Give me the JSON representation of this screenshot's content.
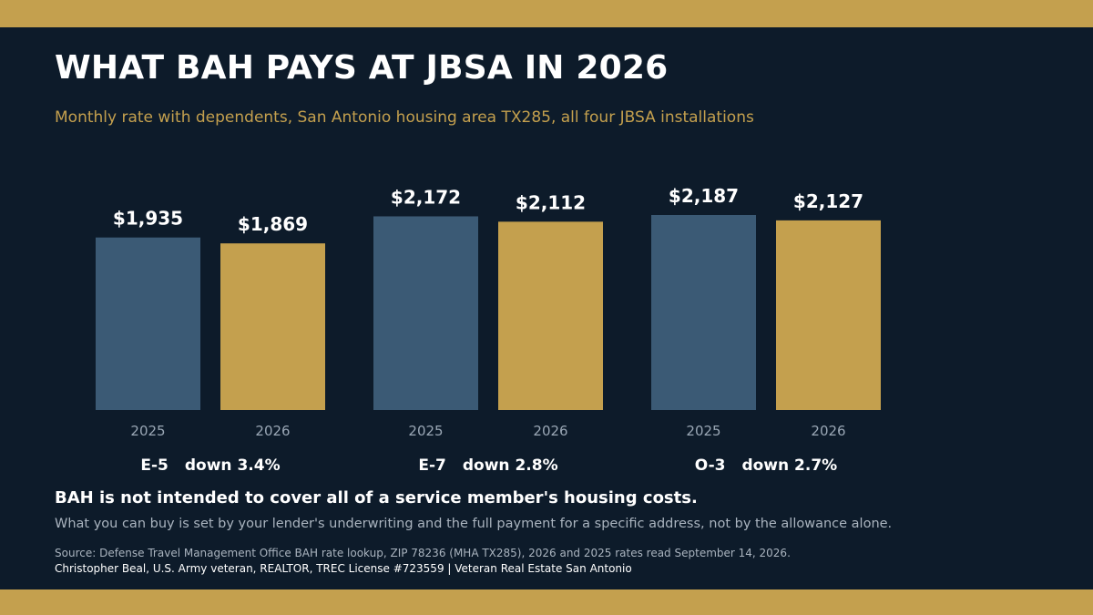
{
  "colors": {
    "background": "#0d1b2a",
    "gold": "#c4a04e",
    "slate": "#3b5a75"
  },
  "header": {
    "title": "WHAT BAH PAYS AT JBSA IN 2026",
    "subtitle": "Monthly rate with dependents, San Antonio housing area TX285, all four JBSA installations"
  },
  "chart_data": {
    "type": "bar",
    "title": "WHAT BAH PAYS AT JBSA IN 2026",
    "subtitle": "Monthly rate with dependents, San Antonio housing area TX285, all four JBSA installations",
    "grid": false,
    "ylim": [
      0,
      2187
    ],
    "groups": [
      {
        "name": "E-5",
        "change": "down 3.4%",
        "bars": [
          {
            "year": "2025",
            "value": 1935,
            "label": "$1,935"
          },
          {
            "year": "2026",
            "value": 1869,
            "label": "$1,869"
          }
        ]
      },
      {
        "name": "E-7",
        "change": "down 2.8%",
        "bars": [
          {
            "year": "2025",
            "value": 2172,
            "label": "$2,172"
          },
          {
            "year": "2026",
            "value": 2112,
            "label": "$2,112"
          }
        ]
      },
      {
        "name": "O-3",
        "change": "down 2.7%",
        "bars": [
          {
            "year": "2025",
            "value": 2187,
            "label": "$2,187"
          },
          {
            "year": "2026",
            "value": 2127,
            "label": "$2,127"
          }
        ]
      }
    ]
  },
  "footer": {
    "note": "BAH is not intended to cover all of a service member's housing costs.",
    "subnote": "What you can buy is set by your lender's underwriting and the full payment for a specific address, not by the allowance alone.",
    "source": "Source: Defense Travel Management Office BAH rate lookup, ZIP 78236 (MHA TX285), 2026 and 2025 rates read September 14, 2026.",
    "credit": "Christopher Beal, U.S. Army veteran, REALTOR, TREC License #723559 | Veteran Real Estate San Antonio"
  }
}
